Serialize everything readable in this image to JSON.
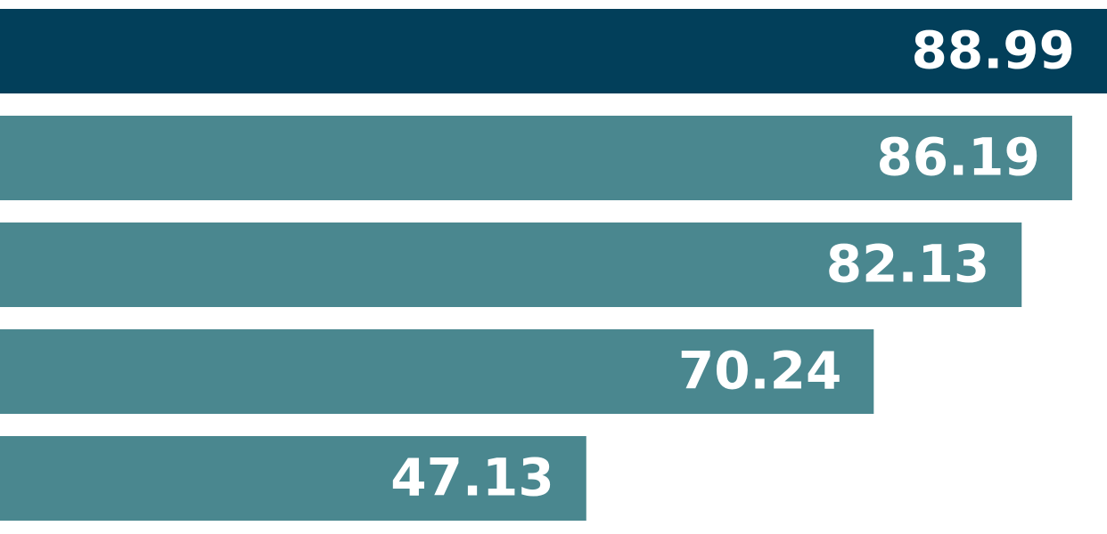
{
  "chart_data": {
    "type": "bar",
    "orientation": "horizontal",
    "values": [
      88.99,
      86.19,
      82.13,
      70.24,
      47.13
    ],
    "colors": [
      "#023f5a",
      "#4a878f",
      "#4a878f",
      "#4a878f",
      "#4a878f"
    ],
    "label_color": "#ffffff"
  }
}
